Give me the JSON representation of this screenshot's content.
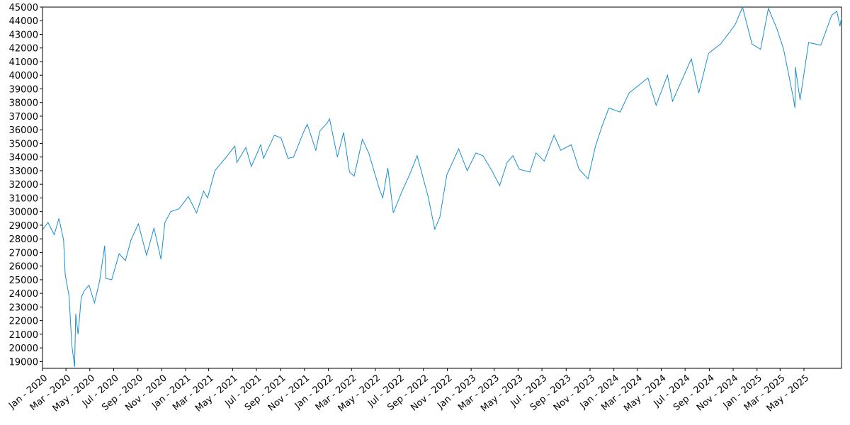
{
  "chart_data": {
    "type": "line",
    "title": "",
    "xlabel": "",
    "ylabel": "",
    "grid": false,
    "legend": "none",
    "line_color": "#1a8fd0",
    "xlim": [
      "2020-01-01",
      "2025-08-05"
    ],
    "ylim": [
      18500,
      45000
    ],
    "y_ticks": [
      19000,
      20000,
      21000,
      22000,
      23000,
      24000,
      25000,
      26000,
      27000,
      28000,
      29000,
      30000,
      31000,
      32000,
      33000,
      34000,
      35000,
      36000,
      37000,
      38000,
      39000,
      40000,
      41000,
      42000,
      43000,
      44000,
      45000
    ],
    "x_ticks": [
      {
        "date": "2020-01-01",
        "label": "Jan - 2020"
      },
      {
        "date": "2020-03-01",
        "label": "Mar - 2020"
      },
      {
        "date": "2020-05-01",
        "label": "May - 2020"
      },
      {
        "date": "2020-07-01",
        "label": "Jul - 2020"
      },
      {
        "date": "2020-09-01",
        "label": "Sep - 2020"
      },
      {
        "date": "2020-11-01",
        "label": "Nov - 2020"
      },
      {
        "date": "2021-01-01",
        "label": "Jan - 2021"
      },
      {
        "date": "2021-03-01",
        "label": "Mar - 2021"
      },
      {
        "date": "2021-05-01",
        "label": "May - 2021"
      },
      {
        "date": "2021-07-01",
        "label": "Jul - 2021"
      },
      {
        "date": "2021-09-01",
        "label": "Sep - 2021"
      },
      {
        "date": "2021-11-01",
        "label": "Nov - 2021"
      },
      {
        "date": "2022-01-01",
        "label": "Jan - 2022"
      },
      {
        "date": "2022-03-01",
        "label": "Mar - 2022"
      },
      {
        "date": "2022-05-01",
        "label": "May - 2022"
      },
      {
        "date": "2022-07-01",
        "label": "Jul - 2022"
      },
      {
        "date": "2022-09-01",
        "label": "Sep - 2022"
      },
      {
        "date": "2022-11-01",
        "label": "Nov - 2022"
      },
      {
        "date": "2023-01-01",
        "label": "Jan - 2023"
      },
      {
        "date": "2023-03-01",
        "label": "Mar - 2023"
      },
      {
        "date": "2023-05-01",
        "label": "May - 2023"
      },
      {
        "date": "2023-07-01",
        "label": "Jul - 2023"
      },
      {
        "date": "2023-09-01",
        "label": "Sep - 2023"
      },
      {
        "date": "2023-11-01",
        "label": "Nov - 2023"
      },
      {
        "date": "2024-01-01",
        "label": "Jan - 2024"
      },
      {
        "date": "2024-03-01",
        "label": "Mar - 2024"
      },
      {
        "date": "2024-05-01",
        "label": "May - 2024"
      },
      {
        "date": "2024-07-01",
        "label": "Jul - 2024"
      },
      {
        "date": "2024-09-01",
        "label": "Sep - 2024"
      },
      {
        "date": "2024-11-01",
        "label": "Nov - 2024"
      },
      {
        "date": "2025-01-01",
        "label": "Jan - 2025"
      },
      {
        "date": "2025-03-01",
        "label": "Mar - 2025"
      },
      {
        "date": "2025-05-01",
        "label": "May - 2025"
      }
    ],
    "series": [
      {
        "points": [
          [
            "2020-01-02",
            28700
          ],
          [
            "2020-01-15",
            29200
          ],
          [
            "2020-01-31",
            28300
          ],
          [
            "2020-02-12",
            29500
          ],
          [
            "2020-02-24",
            27900
          ],
          [
            "2020-02-28",
            25400
          ],
          [
            "2020-03-09",
            23800
          ],
          [
            "2020-03-16",
            20200
          ],
          [
            "2020-03-23",
            18600
          ],
          [
            "2020-03-26",
            22500
          ],
          [
            "2020-04-01",
            21000
          ],
          [
            "2020-04-09",
            23700
          ],
          [
            "2020-04-17",
            24200
          ],
          [
            "2020-04-29",
            24600
          ],
          [
            "2020-05-13",
            23300
          ],
          [
            "2020-05-26",
            24900
          ],
          [
            "2020-06-08",
            27500
          ],
          [
            "2020-06-11",
            25100
          ],
          [
            "2020-06-26",
            25000
          ],
          [
            "2020-07-15",
            26900
          ],
          [
            "2020-07-31",
            26400
          ],
          [
            "2020-08-14",
            27900
          ],
          [
            "2020-09-02",
            29100
          ],
          [
            "2020-09-23",
            26800
          ],
          [
            "2020-10-12",
            28800
          ],
          [
            "2020-10-30",
            26500
          ],
          [
            "2020-11-09",
            29200
          ],
          [
            "2020-11-24",
            30000
          ],
          [
            "2020-12-15",
            30200
          ],
          [
            "2021-01-08",
            31100
          ],
          [
            "2021-01-29",
            29900
          ],
          [
            "2021-02-16",
            31500
          ],
          [
            "2021-02-26",
            31000
          ],
          [
            "2021-03-17",
            33000
          ],
          [
            "2021-04-15",
            34000
          ],
          [
            "2021-05-07",
            34800
          ],
          [
            "2021-05-12",
            33600
          ],
          [
            "2021-06-04",
            34700
          ],
          [
            "2021-06-18",
            33300
          ],
          [
            "2021-07-12",
            34900
          ],
          [
            "2021-07-19",
            33900
          ],
          [
            "2021-08-16",
            35600
          ],
          [
            "2021-09-02",
            35400
          ],
          [
            "2021-09-20",
            33900
          ],
          [
            "2021-10-04",
            34000
          ],
          [
            "2021-10-29",
            35800
          ],
          [
            "2021-11-08",
            36400
          ],
          [
            "2021-11-30",
            34500
          ],
          [
            "2021-12-10",
            35900
          ],
          [
            "2021-12-29",
            36500
          ],
          [
            "2022-01-04",
            36800
          ],
          [
            "2022-01-24",
            34000
          ],
          [
            "2022-02-09",
            35800
          ],
          [
            "2022-02-24",
            32900
          ],
          [
            "2022-03-08",
            32600
          ],
          [
            "2022-03-29",
            35300
          ],
          [
            "2022-04-14",
            34300
          ],
          [
            "2022-05-12",
            31600
          ],
          [
            "2022-05-20",
            31000
          ],
          [
            "2022-06-02",
            33200
          ],
          [
            "2022-06-16",
            29900
          ],
          [
            "2022-07-07",
            31400
          ],
          [
            "2022-07-29",
            32800
          ],
          [
            "2022-08-16",
            34100
          ],
          [
            "2022-09-13",
            31100
          ],
          [
            "2022-09-30",
            28700
          ],
          [
            "2022-10-13",
            29600
          ],
          [
            "2022-10-31",
            32700
          ],
          [
            "2022-11-30",
            34600
          ],
          [
            "2022-12-22",
            33000
          ],
          [
            "2023-01-13",
            34300
          ],
          [
            "2023-01-31",
            34100
          ],
          [
            "2023-02-23",
            33000
          ],
          [
            "2023-03-15",
            31900
          ],
          [
            "2023-04-03",
            33600
          ],
          [
            "2023-04-18",
            34100
          ],
          [
            "2023-05-04",
            33100
          ],
          [
            "2023-05-31",
            32900
          ],
          [
            "2023-06-16",
            34300
          ],
          [
            "2023-07-07",
            33700
          ],
          [
            "2023-08-01",
            35600
          ],
          [
            "2023-08-18",
            34500
          ],
          [
            "2023-09-14",
            34900
          ],
          [
            "2023-10-04",
            33100
          ],
          [
            "2023-10-27",
            32400
          ],
          [
            "2023-11-15",
            34800
          ],
          [
            "2023-12-01",
            36200
          ],
          [
            "2023-12-19",
            37600
          ],
          [
            "2024-01-17",
            37300
          ],
          [
            "2024-02-09",
            38700
          ],
          [
            "2024-03-28",
            39800
          ],
          [
            "2024-04-18",
            37800
          ],
          [
            "2024-05-17",
            40000
          ],
          [
            "2024-05-30",
            38100
          ],
          [
            "2024-07-17",
            41200
          ],
          [
            "2024-08-05",
            38700
          ],
          [
            "2024-08-30",
            41600
          ],
          [
            "2024-09-30",
            42300
          ],
          [
            "2024-11-06",
            43700
          ],
          [
            "2024-11-25",
            45000
          ],
          [
            "2024-12-19",
            42300
          ],
          [
            "2025-01-10",
            41900
          ],
          [
            "2025-01-30",
            44900
          ],
          [
            "2025-02-21",
            43400
          ],
          [
            "2025-03-10",
            41900
          ],
          [
            "2025-04-04",
            38300
          ],
          [
            "2025-04-08",
            37600
          ],
          [
            "2025-04-09",
            40600
          ],
          [
            "2025-04-21",
            38200
          ],
          [
            "2025-05-13",
            42400
          ],
          [
            "2025-06-13",
            42200
          ],
          [
            "2025-07-11",
            44400
          ],
          [
            "2025-07-24",
            44700
          ],
          [
            "2025-08-01",
            43600
          ],
          [
            "2025-08-05",
            44200
          ]
        ]
      }
    ]
  }
}
